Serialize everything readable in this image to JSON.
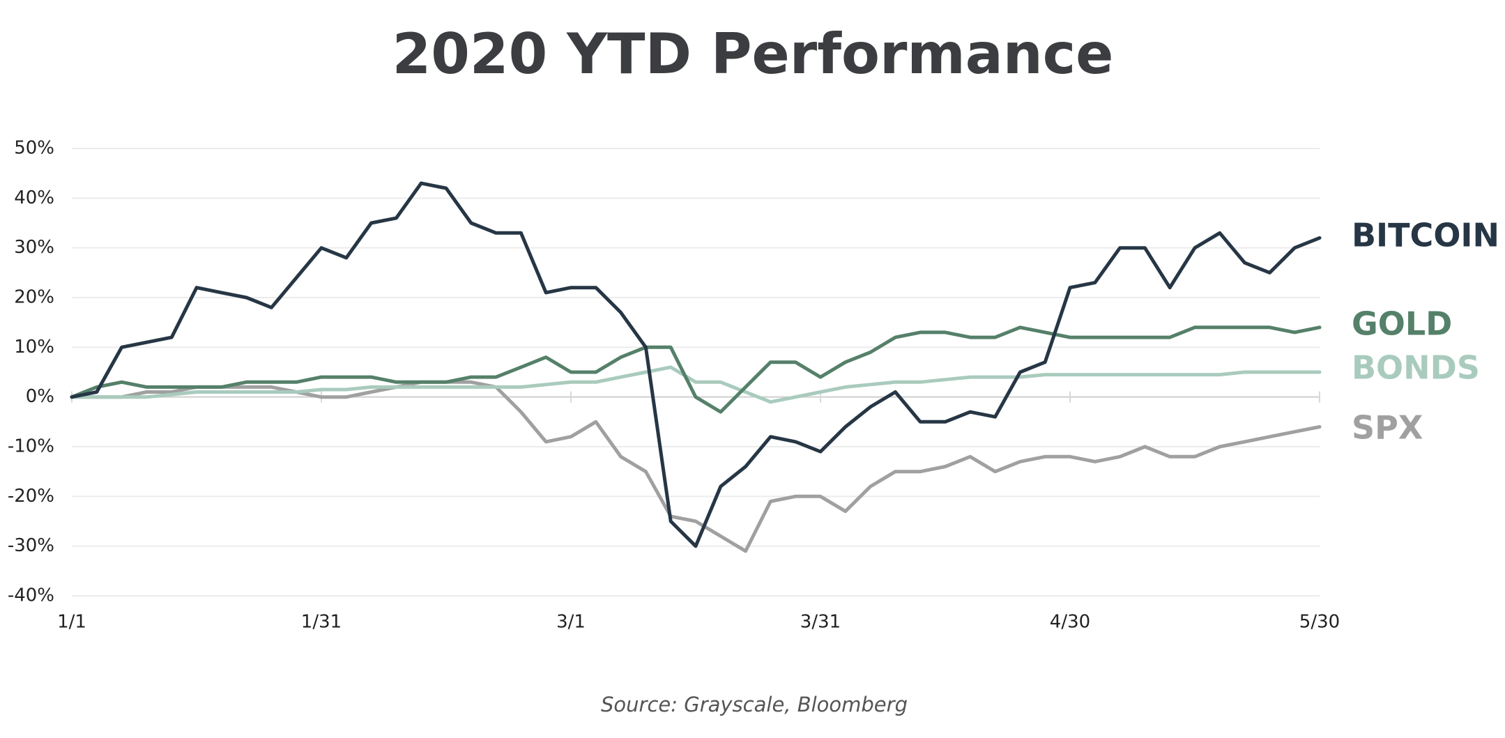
{
  "chart_data": {
    "type": "line",
    "title": "2020 YTD Performance",
    "source": "Source: Grayscale, Bloomberg",
    "x": [
      0,
      3,
      6,
      9,
      12,
      15,
      18,
      21,
      24,
      27,
      30,
      33,
      36,
      39,
      42,
      45,
      48,
      51,
      54,
      57,
      60,
      63,
      66,
      69,
      72,
      75,
      78,
      81,
      84,
      87,
      90,
      93,
      96,
      99,
      102,
      105,
      108,
      111,
      114,
      117,
      120,
      123,
      126,
      129,
      132,
      135,
      138,
      141,
      144,
      147,
      150
    ],
    "series": [
      {
        "name": "BITCOIN",
        "color": "#263645",
        "values": [
          0,
          1,
          10,
          11,
          12,
          22,
          21,
          20,
          18,
          24,
          30,
          28,
          35,
          36,
          43,
          42,
          35,
          33,
          33,
          21,
          22,
          22,
          17,
          10,
          -25,
          -30,
          -18,
          -14,
          -8,
          -9,
          -11,
          -6,
          -2,
          1,
          -5,
          -5,
          -3,
          -4,
          5,
          7,
          22,
          23,
          30,
          30,
          22,
          30,
          33,
          27,
          25,
          30,
          32
        ]
      },
      {
        "name": "GOLD",
        "color": "#55806a",
        "values": [
          0,
          2,
          3,
          2,
          2,
          2,
          2,
          3,
          3,
          3,
          4,
          4,
          4,
          3,
          3,
          3,
          4,
          4,
          6,
          8,
          5,
          5,
          8,
          10,
          10,
          0,
          -3,
          2,
          7,
          7,
          4,
          7,
          9,
          12,
          13,
          13,
          12,
          12,
          14,
          13,
          12,
          12,
          12,
          12,
          12,
          14,
          14,
          14,
          14,
          13,
          14
        ]
      },
      {
        "name": "BONDS",
        "color": "#a9cbbd",
        "values": [
          0,
          0,
          0,
          0,
          0.5,
          1,
          1,
          1,
          1,
          1,
          1.5,
          1.5,
          2,
          2,
          2,
          2,
          2,
          2,
          2,
          2.5,
          3,
          3,
          4,
          5,
          6,
          3,
          3,
          1,
          -1,
          0,
          1,
          2,
          2.5,
          3,
          3,
          3.5,
          4,
          4,
          4,
          4.5,
          4.5,
          4.5,
          4.5,
          4.5,
          4.5,
          4.5,
          4.5,
          5,
          5,
          5,
          5
        ]
      },
      {
        "name": "SPX",
        "color": "#a0a0a0",
        "values": [
          0,
          0,
          0,
          1,
          1,
          2,
          2,
          2,
          2,
          1,
          0,
          0,
          1,
          2,
          3,
          3,
          3,
          2,
          -3,
          -9,
          -8,
          -5,
          -12,
          -15,
          -24,
          -25,
          -28,
          -31,
          -21,
          -20,
          -20,
          -23,
          -18,
          -15,
          -15,
          -14,
          -12,
          -15,
          -13,
          -12,
          -12,
          -13,
          -12,
          -10,
          -12,
          -12,
          -10,
          -9,
          -8,
          -7,
          -6
        ]
      }
    ],
    "xlim": [
      0,
      150
    ],
    "xticks": [
      {
        "value": 0,
        "label": "1/1"
      },
      {
        "value": 30,
        "label": "1/31"
      },
      {
        "value": 60,
        "label": "3/1"
      },
      {
        "value": 90,
        "label": "3/31"
      },
      {
        "value": 120,
        "label": "4/30"
      },
      {
        "value": 150,
        "label": "5/30"
      }
    ],
    "ylim": [
      -40,
      50
    ],
    "yticks": [
      {
        "value": -40,
        "label": "-40%"
      },
      {
        "value": -30,
        "label": "-30%"
      },
      {
        "value": -20,
        "label": "-20%"
      },
      {
        "value": -10,
        "label": "-10%"
      },
      {
        "value": 0,
        "label": "0%"
      },
      {
        "value": 10,
        "label": "10%"
      },
      {
        "value": 20,
        "label": "20%"
      },
      {
        "value": 30,
        "label": "30%"
      },
      {
        "value": 40,
        "label": "40%"
      },
      {
        "value": 50,
        "label": "50%"
      }
    ],
    "grid": true
  }
}
